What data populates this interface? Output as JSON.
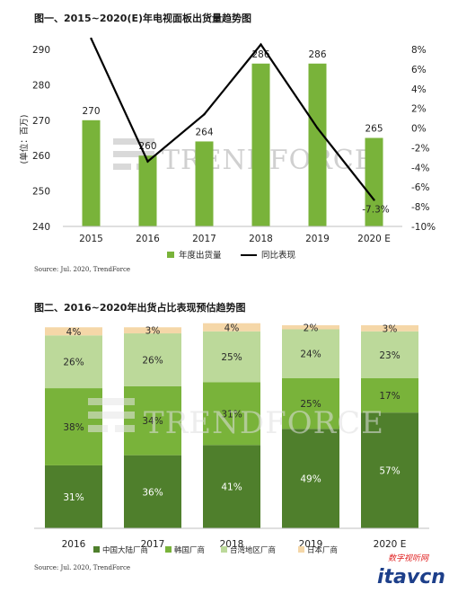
{
  "charts": [
    {
      "title": "图一、2015~2020(E)年电视面板出货量趋势图",
      "source": "Source: Jul. 2020, TrendForce",
      "ylabel": "(单位：百万)",
      "watermark": "TRENDFORCE"
    },
    {
      "title": "图二、2016~2020年出货占比表现预估趋势图",
      "source": "Source: Jul. 2020, TrendForce",
      "watermark": "TRENDFORCE"
    }
  ],
  "site_mark": {
    "cn": "数字视听网",
    "en": "itavcn"
  },
  "colors": {
    "bar": "#79b33a",
    "line": "#000000",
    "china": "#4f7f2c",
    "korea": "#79b33a",
    "taiwan": "#bcd99a",
    "japan": "#f5d7a8"
  },
  "chart_data": [
    {
      "type": "bar",
      "categories": [
        "2015",
        "2016",
        "2017",
        "2018",
        "2019",
        "2020 E"
      ],
      "series": [
        {
          "name": "年度出货量",
          "values": [
            270,
            260,
            264,
            286,
            286,
            265
          ],
          "axis": "left"
        },
        {
          "name": "同比表现",
          "type": "line",
          "values": [
            9.1,
            -3.4,
            1.4,
            8.5,
            0.0,
            -7.3
          ],
          "axis": "right"
        }
      ],
      "data_labels": [
        "270",
        "260",
        "264",
        "286",
        "286",
        "265"
      ],
      "line_labels": [
        "",
        "",
        "",
        "",
        "",
        "-7.3%"
      ],
      "ylim": [
        240,
        290
      ],
      "yticks": [
        "240",
        "250",
        "260",
        "270",
        "280",
        "290"
      ],
      "y2lim": [
        -10,
        8
      ],
      "y2ticks": [
        "-10%",
        "-8%",
        "-6%",
        "-4%",
        "-2%",
        "0%",
        "2%",
        "4%",
        "6%",
        "8%"
      ],
      "legend": "bottom"
    },
    {
      "type": "bar",
      "stacked": true,
      "categories": [
        "2016",
        "2017",
        "2018",
        "2019",
        "2020 E"
      ],
      "series": [
        {
          "name": "中国大陆厂商",
          "values": [
            31,
            36,
            41,
            49,
            57
          ]
        },
        {
          "name": "韩国厂商",
          "values": [
            38,
            34,
            31,
            25,
            17
          ]
        },
        {
          "name": "台湾地区厂商",
          "values": [
            26,
            26,
            25,
            24,
            23
          ]
        },
        {
          "name": "日本厂商",
          "values": [
            4,
            3,
            4,
            2,
            3
          ]
        }
      ],
      "ylim": [
        0,
        100
      ],
      "legend": "bottom"
    }
  ]
}
